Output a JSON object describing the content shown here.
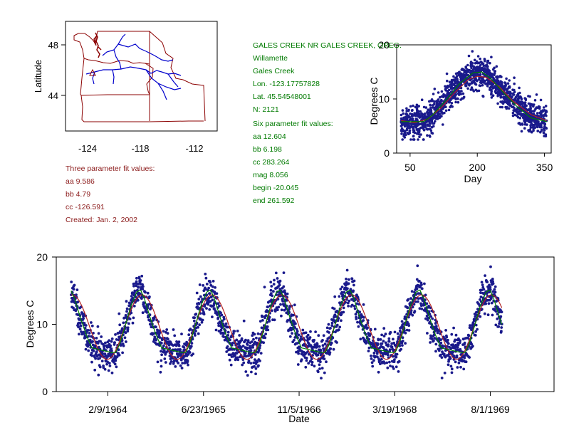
{
  "colors": {
    "points": "#1a1a8c",
    "fit3": "#b22222",
    "fit6": "#008000",
    "map_state": "#8b0000",
    "map_river": "#0000cc",
    "station_text": "#007a00",
    "fit3_text": "#8b1a1a"
  },
  "station": {
    "name": "GALES CREEK NR GALES CREEK, OREG.",
    "basin": "Willamette",
    "stream": "Gales Creek",
    "lon": "Lon. -123.17757828",
    "lat": "Lat. 45.54548001",
    "n": "N: 2121",
    "six_header": "Six parameter fit values:",
    "aa": "aa 12.604",
    "bb": "bb 6.198",
    "cc": "cc 283.264",
    "mag": "mag 8.056",
    "begin": "begin -20.045",
    "end": "end 261.592"
  },
  "three_fit": {
    "header": "Three parameter fit values:",
    "aa": "aa 9.586",
    "bb": "bb 4.79",
    "cc": "cc -126.591",
    "created": "Created:   Jan. 2, 2002"
  },
  "map": {
    "ylabel": "Latitude",
    "xticks": [
      "-124",
      "-118",
      "-112"
    ],
    "yticks": [
      "48",
      "44"
    ],
    "icon": "station-triangle-icon"
  },
  "chart_data": [
    {
      "type": "scatter",
      "title": "",
      "xlabel": "Day",
      "ylabel": "Degrees C",
      "xlim": [
        20,
        365
      ],
      "ylim": [
        0,
        20
      ],
      "xticks": [
        "50",
        "200",
        "350"
      ],
      "yticks": [
        "0",
        "10",
        "20"
      ],
      "grid": false,
      "series": [
        {
          "type": "scatter",
          "x_range": [
            30,
            355
          ],
          "y_range": [
            2.5,
            18.8
          ]
        },
        {
          "type": "line",
          "x": [
            30,
            60,
            90,
            120,
            150,
            180,
            200,
            220,
            250,
            280,
            320,
            355
          ],
          "y": [
            6.0,
            5.6,
            6.3,
            8.4,
            11.2,
            13.6,
            14.2,
            14.0,
            12.2,
            9.6,
            7.1,
            6.0
          ]
        },
        {
          "type": "line",
          "x": [
            30,
            60,
            80,
            100,
            130,
            160,
            190,
            210,
            230,
            260,
            290,
            320,
            355
          ],
          "y": [
            5.8,
            5.8,
            5.8,
            7.0,
            9.8,
            12.8,
            14.8,
            15.0,
            13.8,
            11.0,
            8.5,
            6.5,
            5.8
          ]
        }
      ]
    },
    {
      "type": "scatter",
      "title": "",
      "xlabel": "Date",
      "ylabel": "Degrees C",
      "xlim": [
        "1963-05-15",
        "1970-06-30"
      ],
      "ylim": [
        0,
        20
      ],
      "xticks": [
        "2/9/1964",
        "6/23/1965",
        "11/5/1966",
        "3/19/1968",
        "8/1/1969"
      ],
      "yticks": [
        "0",
        "10",
        "20"
      ],
      "grid": false,
      "series": [
        {
          "type": "scatter",
          "x_range": [
            "1963-08-01",
            "1969-10-01"
          ],
          "y_range": [
            2.0,
            18.8
          ]
        },
        {
          "type": "line",
          "x_range": [
            "1963-08-01",
            "1969-10-01"
          ],
          "y_range": [
            4.8,
            14.4
          ]
        },
        {
          "type": "line",
          "x_range": [
            "1963-08-01",
            "1969-10-01"
          ],
          "y_range": [
            5.6,
            15.1
          ]
        }
      ]
    }
  ]
}
